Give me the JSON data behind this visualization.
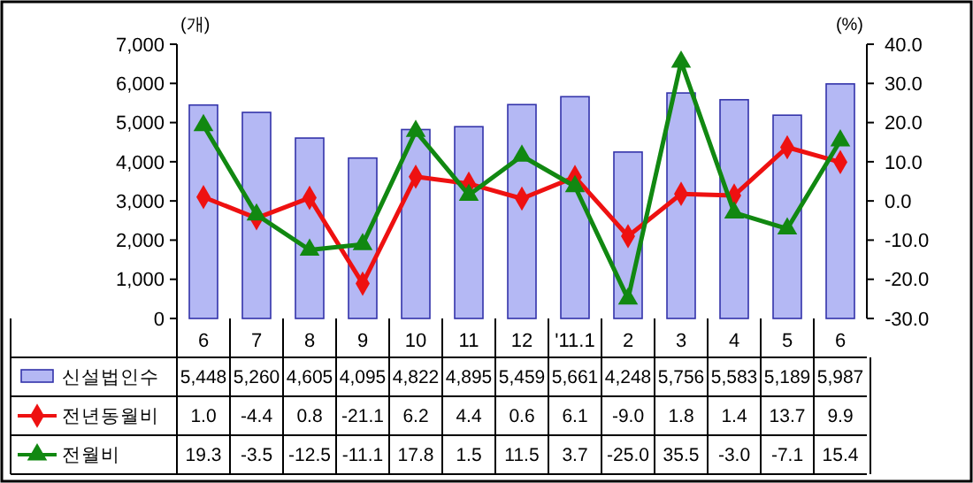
{
  "chart_data": {
    "type": "bar",
    "categories": [
      "6",
      "7",
      "8",
      "9",
      "10",
      "11",
      "12",
      "'11.1",
      "2",
      "3",
      "4",
      "5",
      "6"
    ],
    "ylabel": "(개)",
    "y2label": "(%)",
    "ylim": [
      0,
      7000
    ],
    "yticks": [
      {
        "value": 0,
        "label": "0"
      },
      {
        "value": 1000,
        "label": "1,000"
      },
      {
        "value": 2000,
        "label": "2,000"
      },
      {
        "value": 3000,
        "label": "3,000"
      },
      {
        "value": 4000,
        "label": "4,000"
      },
      {
        "value": 5000,
        "label": "5,000"
      },
      {
        "value": 6000,
        "label": "6,000"
      },
      {
        "value": 7000,
        "label": "7,000"
      }
    ],
    "y2lim": [
      -30,
      40
    ],
    "y2ticks": [
      {
        "value": -30,
        "label": "-30.0"
      },
      {
        "value": -20,
        "label": "-20.0"
      },
      {
        "value": -10,
        "label": "-10.0"
      },
      {
        "value": 0,
        "label": "0.0"
      },
      {
        "value": 10,
        "label": "10.0"
      },
      {
        "value": 20,
        "label": "20.0"
      },
      {
        "value": 30,
        "label": "30.0"
      },
      {
        "value": 40,
        "label": "40.0"
      }
    ],
    "legend": "bottom left",
    "grid": false,
    "series": [
      {
        "name": "신설법인수",
        "color": "#b4b8f4",
        "values": [
          5448,
          5260,
          4605,
          4095,
          4822,
          4895,
          5459,
          5661,
          4248,
          5756,
          5583,
          5189,
          5987
        ],
        "value_labels": [
          "5,448",
          "5,260",
          "4,605",
          "4,095",
          "4,822",
          "4,895",
          "5,459",
          "5,661",
          "4,248",
          "5,756",
          "5,583",
          "5,189",
          "5,987"
        ]
      },
      {
        "name": "전년동월비",
        "type": "line",
        "axis": "y2",
        "color": "#ee1111",
        "marker": "diamond",
        "values": [
          1.0,
          -4.4,
          0.8,
          -21.1,
          6.2,
          4.4,
          0.6,
          6.1,
          -9.0,
          1.8,
          1.4,
          13.7,
          9.9
        ],
        "value_labels": [
          "1.0",
          "-4.4",
          "0.8",
          "-21.1",
          "6.2",
          "4.4",
          "0.6",
          "6.1",
          "-9.0",
          "1.8",
          "1.4",
          "13.7",
          "9.9"
        ]
      },
      {
        "name": "전월비",
        "type": "line",
        "axis": "y2",
        "color": "#118811",
        "marker": "triangle",
        "values": [
          19.3,
          -3.5,
          -12.5,
          -11.1,
          17.8,
          1.5,
          11.5,
          3.7,
          -25.0,
          35.5,
          -3.0,
          -7.1,
          15.4
        ],
        "value_labels": [
          "19.3",
          "-3.5",
          "-12.5",
          "-11.1",
          "17.8",
          "1.5",
          "11.5",
          "3.7",
          "-25.0",
          "35.5",
          "-3.0",
          "-7.1",
          "15.4"
        ]
      }
    ]
  }
}
